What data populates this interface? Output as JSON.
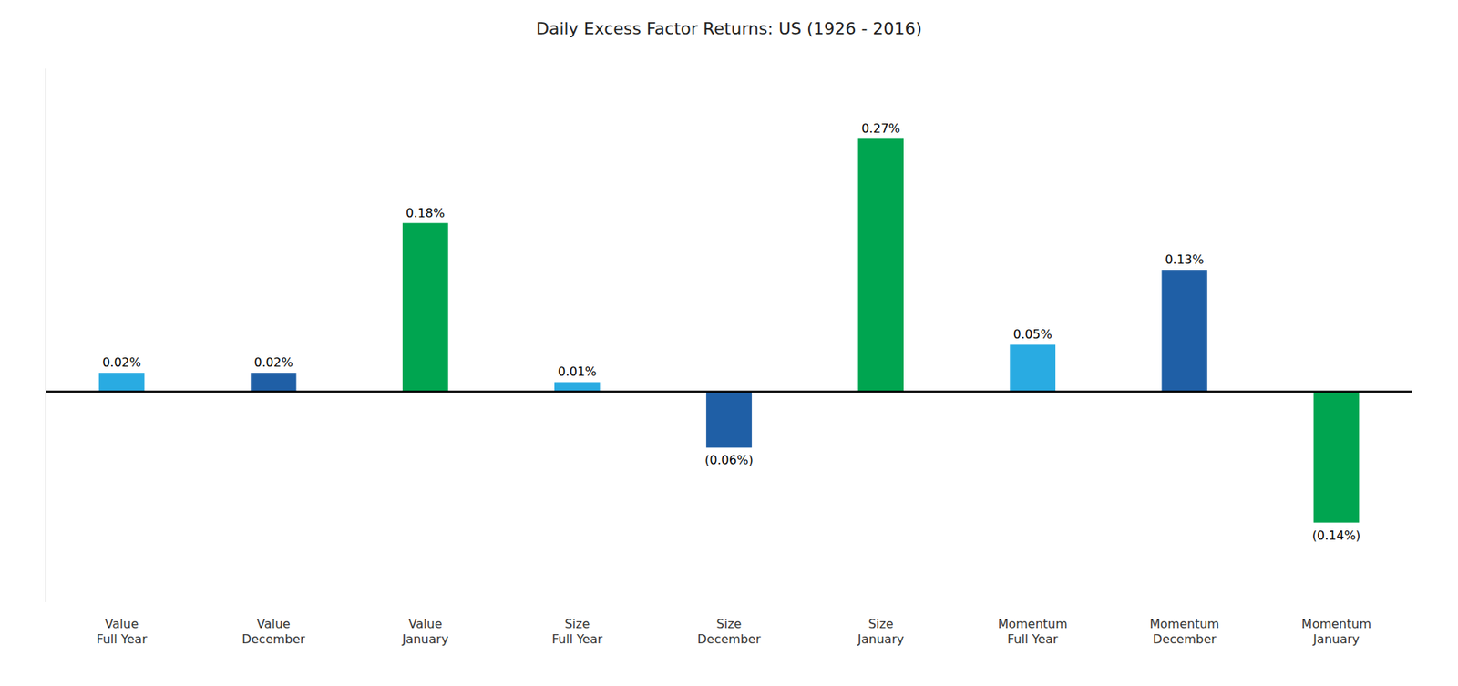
{
  "chart_data": {
    "type": "bar",
    "title": "Daily Excess Factor Returns: US (1926 - 2016)",
    "categories": [
      "Value\nFull Year",
      "Value\nDecember",
      "Value\nJanuary",
      "Size\nFull Year",
      "Size\nDecember",
      "Size\nJanuary",
      "Momentum\nFull Year",
      "Momentum\nDecember",
      "Momentum\nJanuary"
    ],
    "values": [
      0.02,
      0.02,
      0.18,
      0.01,
      -0.06,
      0.27,
      0.05,
      0.13,
      -0.14
    ],
    "value_labels": [
      "0.02%",
      "0.02%",
      "0.18%",
      "0.01%",
      "(0.06%)",
      "0.27%",
      "0.05%",
      "0.13%",
      "(0.14%)"
    ],
    "colors": [
      "#29ABE2",
      "#1F5FA6",
      "#00A550",
      "#29ABE2",
      "#1F5FA6",
      "#00A550",
      "#29ABE2",
      "#1F5FA6",
      "#00A550"
    ],
    "ylim": [
      -0.225,
      0.345
    ],
    "data_labels": true,
    "tick_labels": "x",
    "grid": false
  }
}
